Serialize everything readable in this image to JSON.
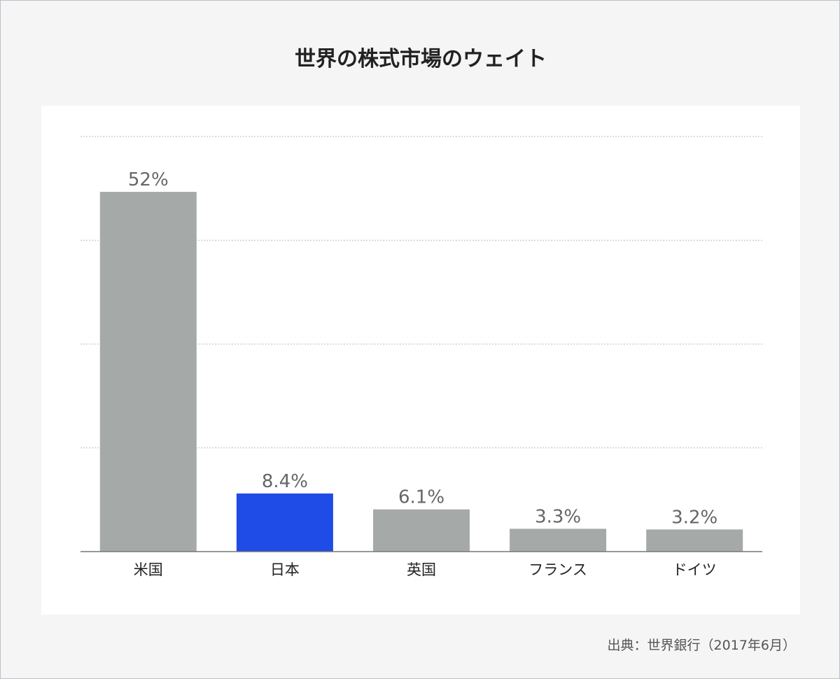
{
  "chart_data": {
    "type": "bar",
    "title": "世界の株式市場のウェイト",
    "categories": [
      "米国",
      "日本",
      "英国",
      "フランス",
      "ドイツ"
    ],
    "values": [
      52,
      8.4,
      6.1,
      3.3,
      3.2
    ],
    "value_labels": [
      "52%",
      "8.4%",
      "6.1%",
      "3.3%",
      "3.2%"
    ],
    "bar_colors": [
      "#a5aaa8",
      "#1f4be6",
      "#a5aaa8",
      "#a5aaa8",
      "#a5aaa8"
    ],
    "ylim": [
      0,
      60
    ],
    "gridlines": [
      15,
      30,
      45,
      60
    ],
    "grid": true,
    "xlabel": "",
    "ylabel": "",
    "source": "出典：世界銀行（2017年6月）"
  }
}
